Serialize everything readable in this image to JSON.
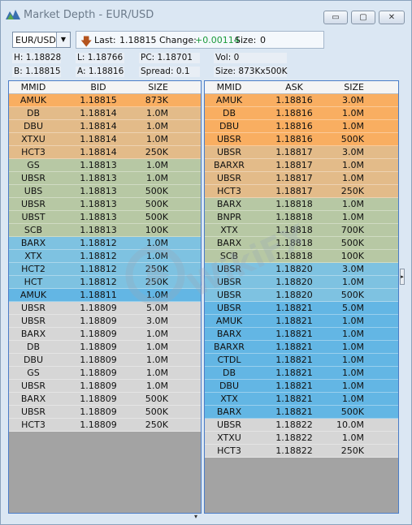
{
  "window": {
    "title": "Market Depth - EUR/USD",
    "buttons": {
      "minimize": "▭",
      "maximize": "▢",
      "close": "✕"
    }
  },
  "symbol": {
    "value": "EUR/USD"
  },
  "quote": {
    "last_label": "Last:",
    "last": "1.18815",
    "change_label": "Change:",
    "change": "+0.00114",
    "size_label": "Size:",
    "size": "0"
  },
  "stats": {
    "high": "H: 1.18828",
    "low": "L: 1.18766",
    "pc": "PC: 1.18701",
    "vol": "Vol: 0",
    "bid": "B: 1.18815",
    "ask": "A: 1.18816",
    "spread": "Spread: 0.1",
    "size": "Size: 873Kx500K"
  },
  "bid_table": {
    "headers": [
      "MMID",
      "BID",
      "SIZE"
    ],
    "rows": [
      {
        "mmid": "AMUK",
        "price": "1.18815",
        "size": "873K",
        "color": "orange"
      },
      {
        "mmid": "DB",
        "price": "1.18814",
        "size": "1.0M",
        "color": "tan"
      },
      {
        "mmid": "DBU",
        "price": "1.18814",
        "size": "1.0M",
        "color": "tan"
      },
      {
        "mmid": "XTXU",
        "price": "1.18814",
        "size": "1.0M",
        "color": "tan"
      },
      {
        "mmid": "HCT3",
        "price": "1.18814",
        "size": "250K",
        "color": "tan"
      },
      {
        "mmid": "GS",
        "price": "1.18813",
        "size": "1.0M",
        "color": "sage"
      },
      {
        "mmid": "UBSR",
        "price": "1.18813",
        "size": "1.0M",
        "color": "sage"
      },
      {
        "mmid": "UBS",
        "price": "1.18813",
        "size": "500K",
        "color": "sage"
      },
      {
        "mmid": "UBSR",
        "price": "1.18813",
        "size": "500K",
        "color": "sage"
      },
      {
        "mmid": "UBST",
        "price": "1.18813",
        "size": "500K",
        "color": "sage"
      },
      {
        "mmid": "SCB",
        "price": "1.18813",
        "size": "100K",
        "color": "sage"
      },
      {
        "mmid": "BARX",
        "price": "1.18812",
        "size": "1.0M",
        "color": "blue"
      },
      {
        "mmid": "XTX",
        "price": "1.18812",
        "size": "1.0M",
        "color": "blue"
      },
      {
        "mmid": "HCT2",
        "price": "1.18812",
        "size": "250K",
        "color": "blue"
      },
      {
        "mmid": "HCT",
        "price": "1.18812",
        "size": "250K",
        "color": "blue"
      },
      {
        "mmid": "AMUK",
        "price": "1.18811",
        "size": "1.0M",
        "color": "blue2"
      },
      {
        "mmid": "UBSR",
        "price": "1.18809",
        "size": "5.0M",
        "color": "grey"
      },
      {
        "mmid": "UBSR",
        "price": "1.18809",
        "size": "3.0M",
        "color": "grey"
      },
      {
        "mmid": "BARX",
        "price": "1.18809",
        "size": "1.0M",
        "color": "grey"
      },
      {
        "mmid": "DB",
        "price": "1.18809",
        "size": "1.0M",
        "color": "grey"
      },
      {
        "mmid": "DBU",
        "price": "1.18809",
        "size": "1.0M",
        "color": "grey"
      },
      {
        "mmid": "GS",
        "price": "1.18809",
        "size": "1.0M",
        "color": "grey"
      },
      {
        "mmid": "UBSR",
        "price": "1.18809",
        "size": "1.0M",
        "color": "grey"
      },
      {
        "mmid": "BARX",
        "price": "1.18809",
        "size": "500K",
        "color": "grey"
      },
      {
        "mmid": "UBSR",
        "price": "1.18809",
        "size": "500K",
        "color": "grey"
      },
      {
        "mmid": "HCT3",
        "price": "1.18809",
        "size": "250K",
        "color": "grey"
      }
    ]
  },
  "ask_table": {
    "headers": [
      "MMID",
      "ASK",
      "SIZE"
    ],
    "rows": [
      {
        "mmid": "AMUK",
        "price": "1.18816",
        "size": "3.0M",
        "color": "orange"
      },
      {
        "mmid": "DB",
        "price": "1.18816",
        "size": "1.0M",
        "color": "orange"
      },
      {
        "mmid": "DBU",
        "price": "1.18816",
        "size": "1.0M",
        "color": "orange"
      },
      {
        "mmid": "UBSR",
        "price": "1.18816",
        "size": "500K",
        "color": "orange"
      },
      {
        "mmid": "UBSR",
        "price": "1.18817",
        "size": "3.0M",
        "color": "tan"
      },
      {
        "mmid": "BARXR",
        "price": "1.18817",
        "size": "1.0M",
        "color": "tan"
      },
      {
        "mmid": "UBSR",
        "price": "1.18817",
        "size": "1.0M",
        "color": "tan"
      },
      {
        "mmid": "HCT3",
        "price": "1.18817",
        "size": "250K",
        "color": "tan"
      },
      {
        "mmid": "BARX",
        "price": "1.18818",
        "size": "1.0M",
        "color": "sage"
      },
      {
        "mmid": "BNPR",
        "price": "1.18818",
        "size": "1.0M",
        "color": "sage"
      },
      {
        "mmid": "XTX",
        "price": "1.18818",
        "size": "700K",
        "color": "sage"
      },
      {
        "mmid": "BARX",
        "price": "1.18818",
        "size": "500K",
        "color": "sage"
      },
      {
        "mmid": "SCB",
        "price": "1.18818",
        "size": "100K",
        "color": "sage"
      },
      {
        "mmid": "UBSR",
        "price": "1.18820",
        "size": "3.0M",
        "color": "blue"
      },
      {
        "mmid": "UBSR",
        "price": "1.18820",
        "size": "1.0M",
        "color": "blue"
      },
      {
        "mmid": "UBSR",
        "price": "1.18820",
        "size": "500K",
        "color": "blue"
      },
      {
        "mmid": "UBSR",
        "price": "1.18821",
        "size": "5.0M",
        "color": "blue2"
      },
      {
        "mmid": "AMUK",
        "price": "1.18821",
        "size": "1.0M",
        "color": "blue2"
      },
      {
        "mmid": "BARX",
        "price": "1.18821",
        "size": "1.0M",
        "color": "blue2"
      },
      {
        "mmid": "BARXR",
        "price": "1.18821",
        "size": "1.0M",
        "color": "blue2"
      },
      {
        "mmid": "CTDL",
        "price": "1.18821",
        "size": "1.0M",
        "color": "blue2"
      },
      {
        "mmid": "DB",
        "price": "1.18821",
        "size": "1.0M",
        "color": "blue2"
      },
      {
        "mmid": "DBU",
        "price": "1.18821",
        "size": "1.0M",
        "color": "blue2"
      },
      {
        "mmid": "XTX",
        "price": "1.18821",
        "size": "1.0M",
        "color": "blue2"
      },
      {
        "mmid": "BARX",
        "price": "1.18821",
        "size": "500K",
        "color": "blue2"
      },
      {
        "mmid": "UBSR",
        "price": "1.18822",
        "size": "10.0M",
        "color": "grey"
      },
      {
        "mmid": "XTXU",
        "price": "1.18822",
        "size": "1.0M",
        "color": "grey"
      },
      {
        "mmid": "HCT3",
        "price": "1.18822",
        "size": "250K",
        "color": "grey"
      }
    ]
  },
  "watermark": {
    "text": "WikiFX"
  }
}
